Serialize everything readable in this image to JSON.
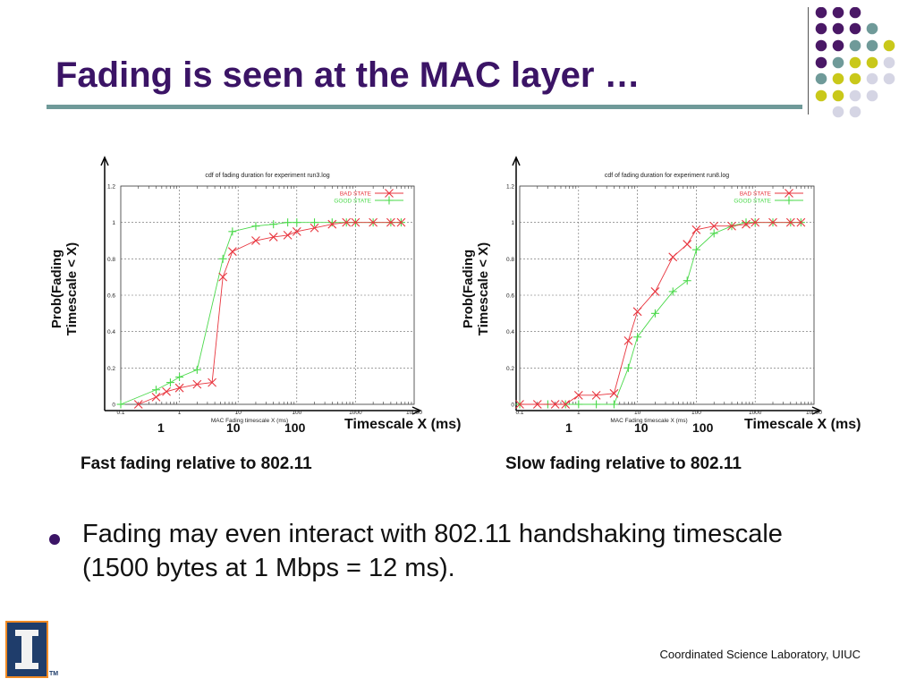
{
  "slide": {
    "title": "Fading is seen at the MAC layer …",
    "bullet": "Fading may even interact with 802.11 handshaking timescale (1500 bytes at 1 Mbps = 12 ms).",
    "footer": "Coordinated Science Laboratory, UIUC",
    "colors": {
      "title": "#3b1466",
      "rule": "#6f9a99",
      "bad": "#e8363f",
      "good": "#4bd94b"
    },
    "overlay": {
      "ylabel_line1": "Prob(Fading",
      "ylabel_line2": "Timescale < X)",
      "xlabel": "Timescale X (ms)",
      "tick_1": "1",
      "tick_10": "10",
      "tick_100": "100"
    },
    "captions": [
      "Fast fading relative to 802.11",
      "Slow fading relative to 802.11"
    ]
  },
  "chart_data": [
    {
      "type": "line",
      "title": "cdf of fading duration for experiment run3.log",
      "xlabel": "MAC Fading timescale X (ms)",
      "x_scale": "log",
      "xlim": [
        0.1,
        10000
      ],
      "ylim": [
        0,
        1.2
      ],
      "x_tick_labels": [
        "0.1",
        "1",
        "10",
        "100",
        "1000",
        "10000"
      ],
      "y_tick_labels": [
        "0",
        "0.2",
        "0.4",
        "0.6",
        "0.8",
        "1",
        "1.2"
      ],
      "grid": true,
      "legend": "top-right",
      "series": [
        {
          "name": "BAD STATE",
          "color": "#e8363f",
          "marker": "x",
          "x": [
            0.2,
            0.4,
            0.6,
            1.0,
            2.0,
            3.6,
            5.5,
            8,
            20,
            40,
            70,
            100,
            200,
            400,
            700,
            1000,
            2000,
            4000,
            6000
          ],
          "y": [
            0,
            0.04,
            0.07,
            0.09,
            0.11,
            0.12,
            0.7,
            0.84,
            0.9,
            0.92,
            0.93,
            0.95,
            0.97,
            0.99,
            1.0,
            1.0,
            1.0,
            1.0,
            1.0
          ]
        },
        {
          "name": "GOOD STATE",
          "color": "#4bd94b",
          "marker": "+",
          "x": [
            0.1,
            0.4,
            0.7,
            1.0,
            2.0,
            5.5,
            8,
            20,
            40,
            70,
            100,
            200,
            400,
            700,
            1000,
            2000,
            4000,
            6000
          ],
          "y": [
            0,
            0.08,
            0.12,
            0.15,
            0.19,
            0.8,
            0.95,
            0.98,
            0.99,
            1.0,
            1.0,
            1.0,
            1.0,
            1.0,
            1.0,
            1.0,
            1.0,
            1.0
          ]
        }
      ]
    },
    {
      "type": "line",
      "title": "cdf of fading duration for experiment run8.log",
      "xlabel": "MAC Fading timescale X (ms)",
      "x_scale": "log",
      "xlim": [
        0.1,
        10000
      ],
      "ylim": [
        0,
        1.2
      ],
      "x_tick_labels": [
        "0.1",
        "1",
        "10",
        "100",
        "1000",
        "10000"
      ],
      "y_tick_labels": [
        "0",
        "0.2",
        "0.4",
        "0.6",
        "0.8",
        "1",
        "1.2"
      ],
      "grid": true,
      "legend": "top-right",
      "series": [
        {
          "name": "BAD STATE",
          "color": "#e8363f",
          "marker": "x",
          "x": [
            0.1,
            0.2,
            0.4,
            0.6,
            1.0,
            2.0,
            4.0,
            7,
            10,
            20,
            40,
            70,
            100,
            200,
            400,
            700,
            1000,
            2000,
            4000,
            6000
          ],
          "y": [
            0,
            0,
            0,
            0,
            0.05,
            0.05,
            0.06,
            0.35,
            0.51,
            0.62,
            0.81,
            0.88,
            0.96,
            0.98,
            0.98,
            0.99,
            1.0,
            1.0,
            1.0,
            1.0
          ]
        },
        {
          "name": "GOOD STATE",
          "color": "#4bd94b",
          "marker": "+",
          "x": [
            0.1,
            0.3,
            0.6,
            1.0,
            2.0,
            4.0,
            7,
            10,
            20,
            40,
            70,
            100,
            200,
            400,
            700,
            1000,
            2000,
            4000,
            6000
          ],
          "y": [
            0,
            0,
            0,
            0,
            0,
            0,
            0.2,
            0.37,
            0.5,
            0.62,
            0.68,
            0.85,
            0.94,
            0.98,
            1.0,
            1.0,
            1.0,
            1.0,
            1.0
          ]
        }
      ]
    }
  ]
}
